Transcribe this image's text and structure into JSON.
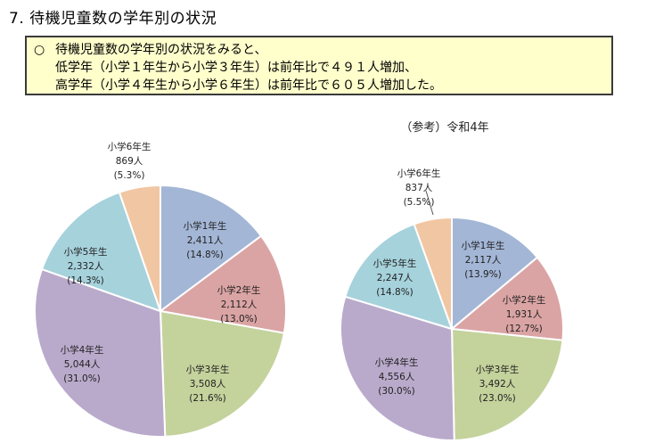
{
  "heading": "7. 待機児童数の学年別の状況",
  "summary": {
    "bullet": "○",
    "lines": [
      "待機児童数の学年別の状況をみると、",
      "低学年（小学１年生から小学３年生）は前年比で４９１人増加、",
      "高学年（小学４年生から小学６年生）は前年比で６０５人増加した。"
    ]
  },
  "colors": {
    "grade1": "#a3b6d6",
    "grade2": "#dba4a4",
    "grade3": "#c4d29c",
    "grade4": "#b9aacb",
    "grade5": "#a6d2dc",
    "grade6": "#f1c6a2"
  },
  "chart_data": [
    {
      "type": "pie",
      "title": "",
      "slices": [
        {
          "label": "小学1年生",
          "count": "2,411人",
          "pct": "(14.8%)",
          "value": 14.8,
          "color_key": "grade1"
        },
        {
          "label": "小学2年生",
          "count": "2,112人",
          "pct": "(13.0%)",
          "value": 13.0,
          "color_key": "grade2"
        },
        {
          "label": "小学3年生",
          "count": "3,508人",
          "pct": "(21.6%)",
          "value": 21.6,
          "color_key": "grade3"
        },
        {
          "label": "小学4年生",
          "count": "5,044人",
          "pct": "(31.0%)",
          "value": 31.0,
          "color_key": "grade4"
        },
        {
          "label": "小学5年生",
          "count": "2,332人",
          "pct": "(14.3%)",
          "value": 14.3,
          "color_key": "grade5"
        },
        {
          "label": "小学6年生",
          "count": "869人",
          "pct": "(5.3%)",
          "value": 5.3,
          "color_key": "grade6"
        }
      ]
    },
    {
      "type": "pie",
      "title": "（参考）令和4年",
      "slices": [
        {
          "label": "小学1年生",
          "count": "2,117人",
          "pct": "(13.9%)",
          "value": 13.9,
          "color_key": "grade1"
        },
        {
          "label": "小学2年生",
          "count": "1,931人",
          "pct": "(12.7%)",
          "value": 12.7,
          "color_key": "grade2"
        },
        {
          "label": "小学3年生",
          "count": "3,492人",
          "pct": "(23.0%)",
          "value": 23.0,
          "color_key": "grade3"
        },
        {
          "label": "小学4年生",
          "count": "4,556人",
          "pct": "(30.0%)",
          "value": 30.0,
          "color_key": "grade4"
        },
        {
          "label": "小学5年生",
          "count": "2,247人",
          "pct": "(14.8%)",
          "value": 14.8,
          "color_key": "grade5"
        },
        {
          "label": "小学6年生",
          "count": "837人",
          "pct": "(5.5%)",
          "value": 5.5,
          "color_key": "grade6"
        }
      ]
    }
  ]
}
